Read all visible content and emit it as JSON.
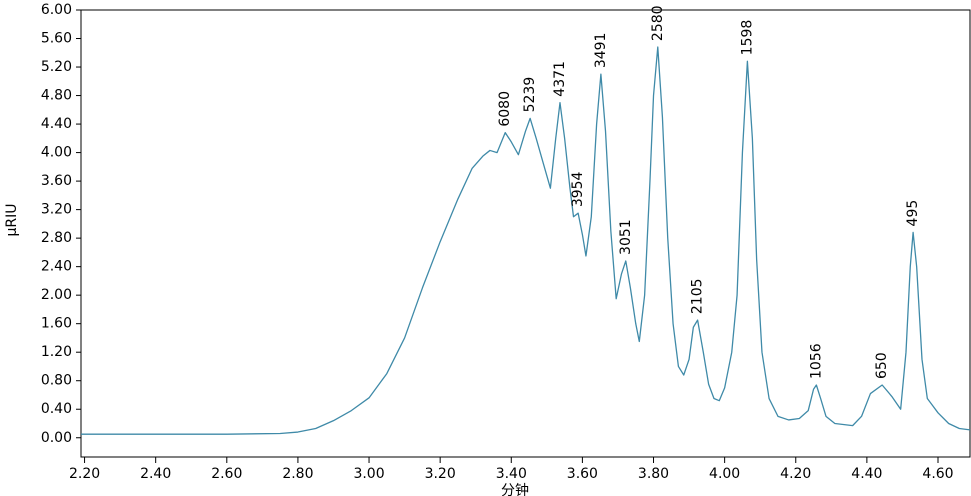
{
  "chart_data": {
    "type": "line",
    "x_label": "分钟",
    "y_label": "μRIU",
    "x": [
      2.19,
      2.4,
      2.6,
      2.75,
      2.8,
      2.85,
      2.9,
      2.95,
      3.0,
      3.05,
      3.1,
      3.15,
      3.2,
      3.25,
      3.29,
      3.32,
      3.34,
      3.36,
      3.383,
      3.4,
      3.42,
      3.44,
      3.453,
      3.47,
      3.49,
      3.51,
      3.525,
      3.537,
      3.55,
      3.565,
      3.575,
      3.588,
      3.6,
      3.61,
      3.625,
      3.64,
      3.652,
      3.665,
      3.68,
      3.695,
      3.71,
      3.722,
      3.735,
      3.75,
      3.76,
      3.775,
      3.79,
      3.8,
      3.812,
      3.825,
      3.84,
      3.855,
      3.87,
      3.885,
      3.9,
      3.912,
      3.924,
      3.94,
      3.955,
      3.97,
      3.985,
      4.0,
      4.02,
      4.035,
      4.05,
      4.064,
      4.078,
      4.09,
      4.105,
      4.125,
      4.15,
      4.18,
      4.21,
      4.235,
      4.25,
      4.258,
      4.27,
      4.285,
      4.31,
      4.36,
      4.385,
      4.41,
      4.443,
      4.47,
      4.495,
      4.51,
      4.522,
      4.53,
      4.54,
      4.555,
      4.57,
      4.585,
      4.6,
      4.63,
      4.66,
      4.69
    ],
    "series": [
      {
        "color": "#3f8aa8",
        "values": [
          0.05,
          0.05,
          0.05,
          0.06,
          0.08,
          0.13,
          0.24,
          0.38,
          0.56,
          0.9,
          1.4,
          2.1,
          2.75,
          3.35,
          3.78,
          3.95,
          4.03,
          4.0,
          4.28,
          4.15,
          3.97,
          4.3,
          4.48,
          4.2,
          3.85,
          3.5,
          4.2,
          4.7,
          4.2,
          3.5,
          3.1,
          3.15,
          2.85,
          2.55,
          3.1,
          4.4,
          5.1,
          4.3,
          2.9,
          1.95,
          2.3,
          2.48,
          2.1,
          1.6,
          1.35,
          2.0,
          3.6,
          4.8,
          5.48,
          4.5,
          2.8,
          1.6,
          1.0,
          0.88,
          1.1,
          1.55,
          1.65,
          1.2,
          0.75,
          0.55,
          0.52,
          0.7,
          1.2,
          2.0,
          4.0,
          5.28,
          4.2,
          2.5,
          1.2,
          0.55,
          0.3,
          0.25,
          0.27,
          0.38,
          0.68,
          0.74,
          0.55,
          0.3,
          0.2,
          0.17,
          0.3,
          0.62,
          0.74,
          0.58,
          0.4,
          1.2,
          2.4,
          2.88,
          2.4,
          1.1,
          0.55,
          0.45,
          0.35,
          0.2,
          0.13,
          0.11
        ]
      }
    ],
    "annotations": [
      {
        "text": "6080",
        "x": 3.383,
        "y": 4.28
      },
      {
        "text": "5239",
        "x": 3.453,
        "y": 4.48
      },
      {
        "text": "4371",
        "x": 3.537,
        "y": 4.7
      },
      {
        "text": "3954",
        "x": 3.588,
        "y": 3.15
      },
      {
        "text": "3491",
        "x": 3.652,
        "y": 5.1
      },
      {
        "text": "3051",
        "x": 3.722,
        "y": 2.48
      },
      {
        "text": "2580",
        "x": 3.812,
        "y": 5.48
      },
      {
        "text": "2105",
        "x": 3.924,
        "y": 1.65
      },
      {
        "text": "1598",
        "x": 4.064,
        "y": 5.28
      },
      {
        "text": "1056",
        "x": 4.258,
        "y": 0.74
      },
      {
        "text": "650",
        "x": 4.443,
        "y": 0.74
      },
      {
        "text": "495",
        "x": 4.53,
        "y": 2.88
      }
    ],
    "xlim": [
      2.19,
      4.69
    ],
    "ylim": [
      -0.27,
      6.0
    ],
    "xticks": [
      {
        "value": 2.2,
        "label": "2.20"
      },
      {
        "value": 2.4,
        "label": "2.40"
      },
      {
        "value": 2.6,
        "label": "2.60"
      },
      {
        "value": 2.8,
        "label": "2.80"
      },
      {
        "value": 3.0,
        "label": "3.00"
      },
      {
        "value": 3.2,
        "label": "3.20"
      },
      {
        "value": 3.4,
        "label": "3.40"
      },
      {
        "value": 3.6,
        "label": "3.60"
      },
      {
        "value": 3.8,
        "label": "3.80"
      },
      {
        "value": 4.0,
        "label": "4.00"
      },
      {
        "value": 4.2,
        "label": "4.20"
      },
      {
        "value": 4.4,
        "label": "4.40"
      },
      {
        "value": 4.6,
        "label": "4.60"
      }
    ],
    "yticks": [
      {
        "value": 0,
        "label": "0.00"
      },
      {
        "value": 0.4,
        "label": "0.40"
      },
      {
        "value": 0.8,
        "label": "0.80"
      },
      {
        "value": 1.2,
        "label": "1.20"
      },
      {
        "value": 1.6,
        "label": "1.60"
      },
      {
        "value": 2.0,
        "label": "2.00"
      },
      {
        "value": 2.4,
        "label": "2.40"
      },
      {
        "value": 2.8,
        "label": "2.80"
      },
      {
        "value": 3.2,
        "label": "3.20"
      },
      {
        "value": 3.6,
        "label": "3.60"
      },
      {
        "value": 4.0,
        "label": "4.00"
      },
      {
        "value": 4.4,
        "label": "4.40"
      },
      {
        "value": 4.8,
        "label": "4.80"
      },
      {
        "value": 5.2,
        "label": "5.20"
      },
      {
        "value": 5.6,
        "label": "5.60"
      },
      {
        "value": 6.0,
        "label": "6.00"
      }
    ]
  }
}
